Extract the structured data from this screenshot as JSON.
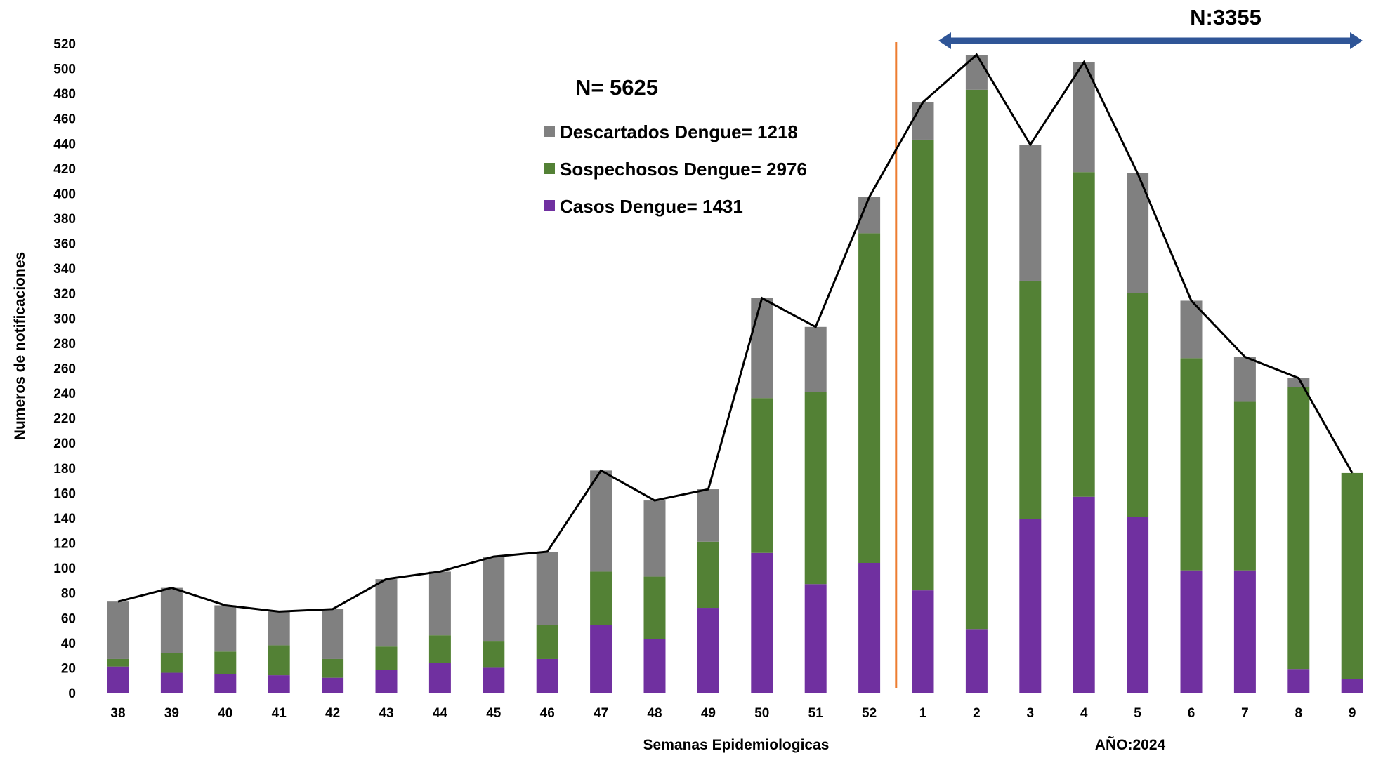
{
  "chart_data": {
    "type": "bar",
    "stacked": true,
    "categories": [
      "38",
      "39",
      "40",
      "41",
      "42",
      "43",
      "44",
      "45",
      "46",
      "47",
      "48",
      "49",
      "50",
      "51",
      "52",
      "1",
      "2",
      "3",
      "4",
      "5",
      "6",
      "7",
      "8",
      "9"
    ],
    "series": [
      {
        "name": "Casos Dengue= 1431",
        "color": "#7030A0",
        "values": [
          21,
          16,
          15,
          14,
          12,
          18,
          24,
          20,
          27,
          54,
          43,
          68,
          112,
          87,
          104,
          82,
          51,
          139,
          157,
          141,
          98,
          98,
          19,
          11
        ]
      },
      {
        "name": "Sospechosos Dengue= 2976",
        "color": "#538135",
        "values": [
          6,
          16,
          18,
          24,
          15,
          19,
          22,
          21,
          27,
          43,
          50,
          53,
          124,
          154,
          264,
          361,
          432,
          191,
          260,
          179,
          170,
          135,
          226,
          165
        ]
      },
      {
        "name": "Descartados Dengue= 1218",
        "color": "#808080",
        "values": [
          46,
          52,
          37,
          27,
          40,
          54,
          51,
          68,
          59,
          81,
          61,
          42,
          80,
          52,
          29,
          30,
          28,
          109,
          88,
          96,
          46,
          36,
          7,
          0
        ]
      }
    ],
    "total_line": {
      "color": "#000000",
      "values": [
        73,
        84,
        70,
        65,
        67,
        91,
        97,
        109,
        113,
        178,
        154,
        163,
        316,
        293,
        397,
        473,
        511,
        439,
        505,
        416,
        314,
        269,
        252,
        176
      ]
    },
    "ylabel": "Numeros de notificaciones",
    "xlabel": "Semanas Epidemiologicas",
    "xlabel2": "AÑO:2024",
    "ylim": [
      0,
      520
    ],
    "ytick_step": 20,
    "grid": false,
    "legend_position": "upper-center",
    "annotations": {
      "total": "N= 5625",
      "year_total": "N:3355"
    },
    "divider_color": "#ED7D31",
    "arrow_color": "#2F5597"
  }
}
